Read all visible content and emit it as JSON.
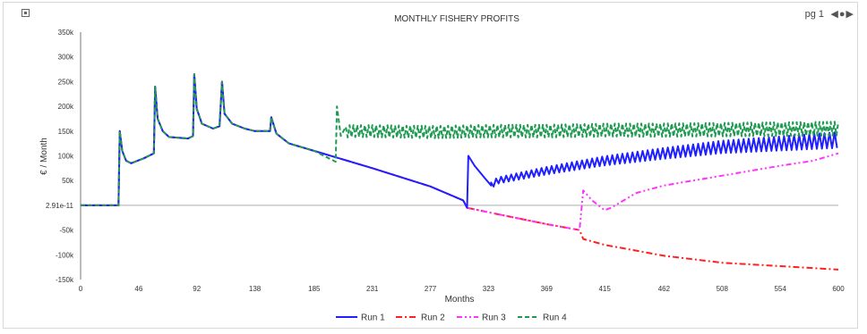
{
  "page_indicator": "pg 1",
  "colors": {
    "run1": "#1f1fff",
    "run2": "#ff2020",
    "run3": "#ff33ff",
    "run4": "#1e9b50",
    "zero_line": "#c8c8c8",
    "axis": "#777777"
  },
  "icons": {
    "corner": "expand-icon",
    "prev": "arrow-left-icon",
    "dot": "dot-icon",
    "next": "arrow-right-icon"
  },
  "chart_data": {
    "type": "line",
    "title": "MONTHLY FISHERY PROFITS",
    "xlabel": "Months",
    "ylabel": "€ / Month",
    "xlim": [
      0,
      600
    ],
    "ylim": [
      -150000,
      350000
    ],
    "x_ticks": [
      0,
      46,
      92,
      138,
      185,
      231,
      277,
      323,
      369,
      415,
      462,
      508,
      554,
      600
    ],
    "x_tick_labels": [
      "0",
      "46",
      "92",
      "138",
      "185",
      "231",
      "277",
      "323",
      "369",
      "415",
      "462",
      "508",
      "554",
      "600"
    ],
    "y_ticks": [
      350000,
      300000,
      250000,
      200000,
      150000,
      100000,
      50000,
      0,
      -50000,
      -100000,
      -150000
    ],
    "y_tick_labels": [
      "350k",
      "300k",
      "250k",
      "200k",
      "150k",
      "100k",
      "50k",
      "2.91e-11",
      "-50k",
      "-100k",
      "-150k"
    ],
    "legend_position": "bottom",
    "series": [
      {
        "name": "Run 1",
        "dash": "solid",
        "points": [
          [
            0,
            0
          ],
          [
            30,
            0
          ],
          [
            31,
            150000
          ],
          [
            33,
            110000
          ],
          [
            36,
            90000
          ],
          [
            40,
            85000
          ],
          [
            50,
            95000
          ],
          [
            58,
            105000
          ],
          [
            59,
            240000
          ],
          [
            61,
            175000
          ],
          [
            65,
            150000
          ],
          [
            70,
            138000
          ],
          [
            85,
            135000
          ],
          [
            89,
            140000
          ],
          [
            90,
            265000
          ],
          [
            92,
            195000
          ],
          [
            96,
            165000
          ],
          [
            105,
            155000
          ],
          [
            110,
            160000
          ],
          [
            112,
            250000
          ],
          [
            114,
            185000
          ],
          [
            120,
            165000
          ],
          [
            130,
            155000
          ],
          [
            138,
            150000
          ],
          [
            150,
            150000
          ],
          [
            151,
            178000
          ],
          [
            155,
            145000
          ],
          [
            165,
            125000
          ],
          [
            185,
            110000
          ],
          [
            231,
            75000
          ],
          [
            277,
            38000
          ],
          [
            303,
            10000
          ],
          [
            306,
            -5000
          ],
          [
            307,
            100000
          ],
          [
            312,
            80000
          ],
          [
            320,
            55000
          ],
          [
            325,
            40000
          ],
          [
            330,
            50000
          ],
          [
            369,
            70000
          ],
          [
            415,
            90000
          ],
          [
            462,
            105000
          ],
          [
            508,
            118000
          ],
          [
            554,
            125000
          ],
          [
            600,
            132000
          ]
        ],
        "oscillation": {
          "start": 325,
          "end": 600,
          "period": 4,
          "amplitude_start": 6000,
          "amplitude_end": 16000
        }
      },
      {
        "name": "Run 2",
        "dash": "dashdot",
        "points": [
          [
            0,
            0
          ],
          [
            30,
            0
          ],
          [
            31,
            150000
          ],
          [
            33,
            110000
          ],
          [
            36,
            90000
          ],
          [
            40,
            85000
          ],
          [
            50,
            95000
          ],
          [
            58,
            105000
          ],
          [
            59,
            240000
          ],
          [
            61,
            175000
          ],
          [
            65,
            150000
          ],
          [
            70,
            138000
          ],
          [
            85,
            135000
          ],
          [
            89,
            140000
          ],
          [
            90,
            265000
          ],
          [
            92,
            195000
          ],
          [
            96,
            165000
          ],
          [
            105,
            155000
          ],
          [
            110,
            160000
          ],
          [
            112,
            250000
          ],
          [
            114,
            185000
          ],
          [
            120,
            165000
          ],
          [
            130,
            155000
          ],
          [
            138,
            150000
          ],
          [
            150,
            150000
          ],
          [
            151,
            178000
          ],
          [
            155,
            145000
          ],
          [
            165,
            125000
          ],
          [
            185,
            110000
          ],
          [
            231,
            75000
          ],
          [
            277,
            38000
          ],
          [
            303,
            10000
          ],
          [
            306,
            -5000
          ],
          [
            323,
            -14000
          ],
          [
            369,
            -38000
          ],
          [
            395,
            -50000
          ],
          [
            398,
            -68000
          ],
          [
            415,
            -80000
          ],
          [
            462,
            -102000
          ],
          [
            508,
            -116000
          ],
          [
            554,
            -123000
          ],
          [
            600,
            -130000
          ]
        ]
      },
      {
        "name": "Run 3",
        "dash": "dashdotdot",
        "points": [
          [
            0,
            0
          ],
          [
            30,
            0
          ],
          [
            31,
            150000
          ],
          [
            33,
            110000
          ],
          [
            36,
            90000
          ],
          [
            40,
            85000
          ],
          [
            50,
            95000
          ],
          [
            58,
            105000
          ],
          [
            59,
            240000
          ],
          [
            61,
            175000
          ],
          [
            65,
            150000
          ],
          [
            70,
            138000
          ],
          [
            85,
            135000
          ],
          [
            89,
            140000
          ],
          [
            90,
            265000
          ],
          [
            92,
            195000
          ],
          [
            96,
            165000
          ],
          [
            105,
            155000
          ],
          [
            110,
            160000
          ],
          [
            112,
            250000
          ],
          [
            114,
            185000
          ],
          [
            120,
            165000
          ],
          [
            130,
            155000
          ],
          [
            138,
            150000
          ],
          [
            150,
            150000
          ],
          [
            151,
            178000
          ],
          [
            155,
            145000
          ],
          [
            165,
            125000
          ],
          [
            185,
            110000
          ],
          [
            231,
            75000
          ],
          [
            277,
            38000
          ],
          [
            303,
            10000
          ],
          [
            306,
            -5000
          ],
          [
            323,
            -14000
          ],
          [
            369,
            -38000
          ],
          [
            395,
            -50000
          ],
          [
            398,
            30000
          ],
          [
            405,
            10000
          ],
          [
            415,
            -10000
          ],
          [
            420,
            -5000
          ],
          [
            440,
            25000
          ],
          [
            462,
            40000
          ],
          [
            508,
            60000
          ],
          [
            554,
            80000
          ],
          [
            580,
            90000
          ],
          [
            600,
            105000
          ]
        ]
      },
      {
        "name": "Run 4",
        "dash": "dashed",
        "points": [
          [
            0,
            0
          ],
          [
            30,
            0
          ],
          [
            31,
            150000
          ],
          [
            33,
            110000
          ],
          [
            36,
            90000
          ],
          [
            40,
            85000
          ],
          [
            50,
            95000
          ],
          [
            58,
            105000
          ],
          [
            59,
            240000
          ],
          [
            61,
            175000
          ],
          [
            65,
            150000
          ],
          [
            70,
            138000
          ],
          [
            85,
            135000
          ],
          [
            89,
            140000
          ],
          [
            90,
            265000
          ],
          [
            92,
            195000
          ],
          [
            96,
            165000
          ],
          [
            105,
            155000
          ],
          [
            110,
            160000
          ],
          [
            112,
            250000
          ],
          [
            114,
            185000
          ],
          [
            120,
            165000
          ],
          [
            130,
            155000
          ],
          [
            138,
            150000
          ],
          [
            150,
            150000
          ],
          [
            151,
            178000
          ],
          [
            155,
            145000
          ],
          [
            165,
            125000
          ],
          [
            185,
            110000
          ],
          [
            202,
            88000
          ],
          [
            203,
            200000
          ],
          [
            206,
            140000
          ],
          [
            212,
            150000
          ],
          [
            231,
            150000
          ],
          [
            277,
            148000
          ],
          [
            323,
            150000
          ],
          [
            369,
            150000
          ],
          [
            415,
            152000
          ],
          [
            462,
            152000
          ],
          [
            508,
            153000
          ],
          [
            554,
            154000
          ],
          [
            600,
            155000
          ]
        ],
        "oscillation": {
          "start": 210,
          "end": 600,
          "period": 3,
          "amplitude_start": 12000,
          "amplitude_end": 14000
        }
      }
    ]
  }
}
